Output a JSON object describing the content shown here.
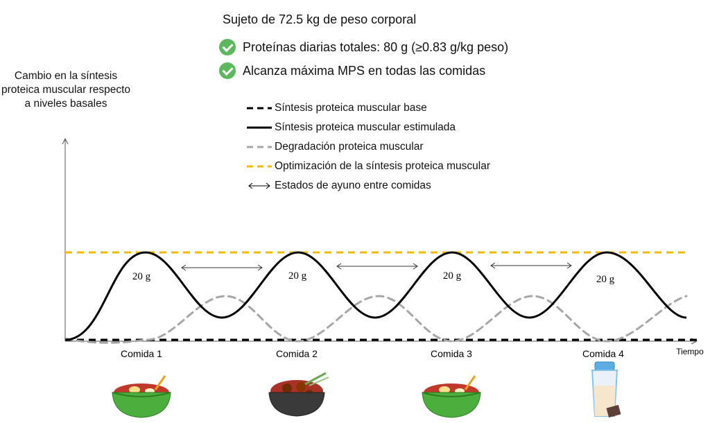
{
  "header": {
    "subject": "Sujeto de 72.5 kg de peso corporal",
    "checks": [
      "Proteínas diarias totales: 80 g (≥0.83 g/kg peso)",
      "Alcanza máxima MPS en todas las comidas"
    ]
  },
  "y_axis_label": "Cambio en la síntesis proteica muscular respecto a niveles basales",
  "legend": [
    {
      "label": "Síntesis proteica muscular base",
      "style": "dashed-black"
    },
    {
      "label": "Síntesis proteica muscular estimulada",
      "style": "solid-black"
    },
    {
      "label": "Degradación proteica muscular",
      "style": "dashed-gray"
    },
    {
      "label": "Optimización de la síntesis proteica muscular",
      "style": "dashed-orange"
    },
    {
      "label": "Estados de ayuno entre comidas",
      "style": "double-arrow"
    }
  ],
  "x_axis_label": "Tiempo",
  "meals": [
    {
      "label": "Comida 1",
      "grams": "20 g",
      "icon": "soup-bowl-icon"
    },
    {
      "label": "Comida 2",
      "grams": "20 g",
      "icon": "meat-bowl-icon"
    },
    {
      "label": "Comida 3",
      "grams": "20 g",
      "icon": "soup-bowl-icon"
    },
    {
      "label": "Comida 4",
      "grams": "20 g",
      "icon": "protein-shake-icon"
    }
  ],
  "colors": {
    "optimization": "#f5b800",
    "degradation": "#a6a6a6",
    "check": "#5cb85c",
    "stimulated": "#000000"
  }
}
